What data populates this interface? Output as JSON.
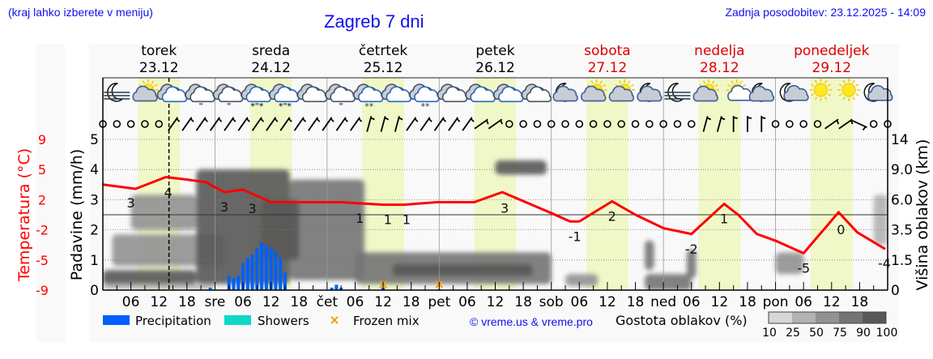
{
  "header": {
    "hint": "(kraj lahko izberete v meniju)",
    "title": "Zagreb 7 dni",
    "updated": "Zadnja posodobitev: 23.12.2025 - 14:09"
  },
  "colors": {
    "temperature": "#ff0000",
    "precipitation": "#0060ff",
    "showers": "#10d8c8",
    "frozen_mix": "#f5a000",
    "daylight": "#f0f8c8",
    "weekend": "#dd0000",
    "link": "#1010ee"
  },
  "days": [
    {
      "name": "torek",
      "date": "23.12",
      "weekend": false
    },
    {
      "name": "sreda",
      "date": "24.12",
      "weekend": false
    },
    {
      "name": "četrtek",
      "date": "25.12",
      "weekend": false
    },
    {
      "name": "petek",
      "date": "26.12",
      "weekend": false
    },
    {
      "name": "sobota",
      "date": "27.12",
      "weekend": true
    },
    {
      "name": "nedelja",
      "date": "28.12",
      "weekend": true
    },
    {
      "name": "ponedeljek",
      "date": "29.12",
      "weekend": true
    }
  ],
  "weather_icons": [
    "moon-fog",
    "sun-cloud",
    "cloud-blue",
    "cloud-rain",
    "cloud-rain",
    "cloud-rain-snow",
    "cloud-rain-snow",
    "cloud",
    "cloud-rain",
    "cloud-snow",
    "cloud-blue",
    "cloud-snow",
    "cloud",
    "cloud-blue",
    "cloud-blue",
    "cloud",
    "moon-cloud",
    "sun-cloud",
    "sun-cloud",
    "moon-cloud",
    "moon-fog",
    "sun-cloud",
    "sun-small-cloud",
    "moon-cloud",
    "moon-small-cloud",
    "sun",
    "sun",
    "moon-small-cloud"
  ],
  "wind": [
    "calm",
    "calm",
    "calm",
    "calm",
    "calm",
    "NE",
    "NE",
    "NE",
    "NE",
    "NE",
    "NE",
    "NE",
    "NE",
    "NE",
    "NE",
    "NE",
    "NE",
    "NE",
    "NE",
    "NNE",
    "NNE",
    "NNE",
    "NE",
    "NE",
    "NE",
    "NE",
    "NE",
    "ENE",
    "ENE",
    "calm",
    "calm",
    "calm",
    "calm",
    "calm",
    "calm",
    "calm",
    "calm",
    "calm",
    "calm",
    "calm",
    "calm",
    "calm",
    "calm",
    "NNE",
    "NNE",
    "N",
    "N",
    "N",
    "calm",
    "calm",
    "calm",
    "calm",
    "ENE",
    "ENE",
    "ESE",
    "calm",
    "calm"
  ],
  "chart_data": {
    "type": "line",
    "x_tick_labels": [
      "06",
      "12",
      "18",
      "sre",
      "06",
      "12",
      "18",
      "čet",
      "06",
      "12",
      "18",
      "pet",
      "06",
      "12",
      "18",
      "sob",
      "06",
      "12",
      "18",
      "ned",
      "06",
      "12",
      "18",
      "pon",
      "06",
      "12",
      "18"
    ],
    "xlim": [
      "2025-12-23 00:00",
      "2025-12-30 00:00"
    ],
    "now": "2025-12-23 14:09",
    "daylight": [
      "07:30",
      "16:30"
    ],
    "axes": {
      "precip": {
        "label": "Padavine (mm/h)",
        "ticks": [
          0,
          1,
          2,
          3,
          4,
          5
        ],
        "range": [
          0,
          5
        ]
      },
      "temp": {
        "label": "Temperatura (°C)",
        "ticks": [
          "-9",
          "-5",
          "-2",
          "2",
          "5",
          "9"
        ],
        "range": [
          -9,
          9
        ]
      },
      "cloud_height": {
        "label": "Višina oblakov (km)",
        "ticks": [
          "0",
          "1.5",
          "3.5",
          "6.0",
          "9.0",
          "14"
        ]
      }
    },
    "temperature": [
      [
        "2025-12-23 00:00",
        3.6
      ],
      [
        "2025-12-23 07:00",
        3.1
      ],
      [
        "2025-12-23 13:30",
        4.5
      ],
      [
        "2025-12-23 18:00",
        4.2
      ],
      [
        "2025-12-23 22:00",
        3.9
      ],
      [
        "2025-12-24 02:00",
        2.7
      ],
      [
        "2025-12-24 06:00",
        3.0
      ],
      [
        "2025-12-24 12:00",
        1.5
      ],
      [
        "2025-12-25 03:00",
        1.5
      ],
      [
        "2025-12-25 12:00",
        1.2
      ],
      [
        "2025-12-25 16:30",
        1.2
      ],
      [
        "2025-12-25 23:30",
        1.5
      ],
      [
        "2025-12-26 07:30",
        1.5
      ],
      [
        "2025-12-26 13:30",
        2.7
      ],
      [
        "2025-12-27 00:00",
        0.2
      ],
      [
        "2025-12-27 04:00",
        -0.8
      ],
      [
        "2025-12-27 06:00",
        -0.8
      ],
      [
        "2025-12-27 13:00",
        1.6
      ],
      [
        "2025-12-27 18:00",
        0.0
      ],
      [
        "2025-12-28 00:00",
        -1.6
      ],
      [
        "2025-12-28 06:00",
        -2.3
      ],
      [
        "2025-12-28 13:00",
        1.3
      ],
      [
        "2025-12-28 16:00",
        0.0
      ],
      [
        "2025-12-28 20:00",
        -2.3
      ],
      [
        "2025-12-29 00:00",
        -3.1
      ],
      [
        "2025-12-29 06:00",
        -4.6
      ],
      [
        "2025-12-29 13:30",
        0.3
      ],
      [
        "2025-12-29 17:30",
        -2.1
      ],
      [
        "2025-12-29 23:30",
        -4.1
      ]
    ],
    "temperature_labels": [
      [
        "2025-12-23 06:00",
        "3"
      ],
      [
        "2025-12-23 14:00",
        "4"
      ],
      [
        "2025-12-24 02:00",
        "3"
      ],
      [
        "2025-12-24 08:00",
        "3"
      ],
      [
        "2025-12-25 07:00",
        "1"
      ],
      [
        "2025-12-25 13:00",
        "1"
      ],
      [
        "2025-12-25 17:00",
        "1"
      ],
      [
        "2025-12-26 14:00",
        "3"
      ],
      [
        "2025-12-27 05:00",
        "-1"
      ],
      [
        "2025-12-27 13:00",
        "2"
      ],
      [
        "2025-12-28 06:00",
        "-2"
      ],
      [
        "2025-12-28 13:00",
        "1"
      ],
      [
        "2025-12-29 06:00",
        "-5"
      ],
      [
        "2025-12-29 14:00",
        "0"
      ],
      [
        "2025-12-30 00:00",
        "-4"
      ]
    ],
    "precipitation": [
      [
        "2025-12-23 23:00",
        0.08
      ],
      [
        "2025-12-24 03:00",
        0.48
      ],
      [
        "2025-12-24 04:00",
        0.4
      ],
      [
        "2025-12-24 05:00",
        0.48
      ],
      [
        "2025-12-24 06:00",
        0.89
      ],
      [
        "2025-12-24 07:00",
        1.07
      ],
      [
        "2025-12-24 08:00",
        1.18
      ],
      [
        "2025-12-24 09:00",
        1.4
      ],
      [
        "2025-12-24 10:00",
        1.58
      ],
      [
        "2025-12-24 11:00",
        1.48
      ],
      [
        "2025-12-24 12:00",
        1.4
      ],
      [
        "2025-12-24 13:00",
        1.29
      ],
      [
        "2025-12-24 14:00",
        1.07
      ],
      [
        "2025-12-24 15:00",
        0.59
      ],
      [
        "2025-12-25 01:00",
        0.08
      ],
      [
        "2025-12-25 02:00",
        0.18
      ],
      [
        "2025-12-25 03:00",
        0.08
      ],
      [
        "2025-12-25 12:00",
        0.08
      ],
      [
        "2025-12-26 00:00",
        0.03
      ]
    ],
    "frozen_mix": [
      "2025-12-25 12:00",
      "2025-12-26 00:00"
    ],
    "cloud_density": [
      [
        "2025-12-23 00:00",
        "2025-12-23 20:00",
        0.25,
        1.0,
        90
      ],
      [
        "2025-12-23 00:00",
        "2025-12-24 00:00",
        0.05,
        0.3,
        25
      ],
      [
        "2025-12-23 02:00",
        "2025-12-24 02:00",
        1.2,
        3.2,
        50
      ],
      [
        "2025-12-23 06:00",
        "2025-12-23 20:00",
        3.5,
        6.5,
        50
      ],
      [
        "2025-12-23 20:00",
        "2025-12-24 16:00",
        0.3,
        9.0,
        90
      ],
      [
        "2025-12-24 16:00",
        "2025-12-25 08:00",
        0.5,
        8.0,
        75
      ],
      [
        "2025-12-24 10:00",
        "2025-12-24 18:00",
        1.5,
        6.0,
        90
      ],
      [
        "2025-12-25 06:00",
        "2025-12-27 00:00",
        0.3,
        2.0,
        75
      ],
      [
        "2025-12-25 14:00",
        "2025-12-26 20:00",
        0.7,
        1.3,
        90
      ],
      [
        "2025-12-26 12:00",
        "2025-12-26 23:00",
        8.5,
        10.5,
        90
      ],
      [
        "2025-12-27 03:00",
        "2025-12-27 10:00",
        0.2,
        0.8,
        50
      ],
      [
        "2025-12-27 20:00",
        "2025-12-28 06:00",
        0.0,
        0.8,
        75
      ],
      [
        "2025-12-27 20:00",
        "2025-12-27 22:00",
        1.0,
        2.8,
        75
      ],
      [
        "2025-12-28 05:00",
        "2025-12-28 07:00",
        0.6,
        2.2,
        75
      ],
      [
        "2025-12-29 00:00",
        "2025-12-29 06:00",
        0.8,
        2.0,
        50
      ],
      [
        "2025-12-29 21:00",
        "2025-12-30 00:00",
        2.5,
        6.5,
        25
      ]
    ],
    "legend": {
      "precipitation": "Precipitation",
      "showers": "Showers",
      "frozen_mix": "Frozen mix",
      "credit": "© vreme.us & vreme.pro",
      "density_title": "Gostota oblakov (%)",
      "density_levels": [
        "10",
        "25",
        "50",
        "75",
        "90",
        "100"
      ],
      "density_colors": [
        "#d6d6d6",
        "#b2b2b2",
        "#929292",
        "#747474",
        "#585858"
      ]
    }
  }
}
